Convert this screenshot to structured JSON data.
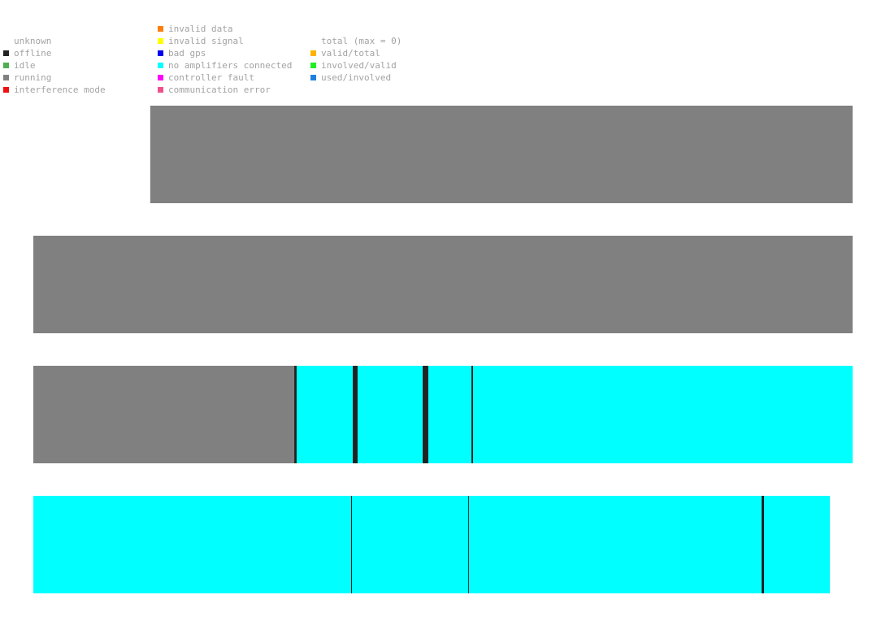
{
  "legend": {
    "status": [
      {
        "label": "unknown",
        "color": ""
      },
      {
        "label": "offline",
        "color": "#222222"
      },
      {
        "label": "idle",
        "color": "#4caf50"
      },
      {
        "label": "running",
        "color": "#808080"
      },
      {
        "label": "interference mode",
        "color": "#ee1111"
      }
    ],
    "errors": [
      {
        "label": "invalid data",
        "color": "#ff7f0e"
      },
      {
        "label": "invalid signal",
        "color": "#ffff00"
      },
      {
        "label": "bad gps",
        "color": "#0000ee"
      },
      {
        "label": "no amplifiers connected",
        "color": "#00ffff"
      },
      {
        "label": "controller fault",
        "color": "#ff00ff"
      },
      {
        "label": "communication error",
        "color": "#f0508c"
      }
    ],
    "ratios": [
      {
        "label": "total (max = 0)",
        "color": ""
      },
      {
        "label": "valid/total",
        "color": "#ffb300"
      },
      {
        "label": "involved/valid",
        "color": "#22ee22"
      },
      {
        "label": "used/involved",
        "color": "#1e7fe0"
      }
    ]
  },
  "chart_data": {
    "type": "timeline",
    "x_range": [
      0,
      1
    ],
    "state_colors": {
      "offline": "#222222",
      "running": "#808080",
      "no amplifiers connected": "#00ffff"
    },
    "rows": [
      {
        "segments": [
          {
            "start": 0.1427,
            "end": 1.0,
            "state": "running"
          }
        ]
      },
      {
        "segments": [
          {
            "start": 0.0,
            "end": 1.0,
            "state": "running"
          }
        ]
      },
      {
        "segments": [
          {
            "start": 0.0,
            "end": 0.3185,
            "state": "running"
          },
          {
            "start": 0.3185,
            "end": 0.3214,
            "state": "offline"
          },
          {
            "start": 0.3214,
            "end": 0.3899,
            "state": "no amplifiers connected"
          },
          {
            "start": 0.3899,
            "end": 0.3958,
            "state": "offline"
          },
          {
            "start": 0.3958,
            "end": 0.4752,
            "state": "no amplifiers connected"
          },
          {
            "start": 0.4752,
            "end": 0.4821,
            "state": "offline"
          },
          {
            "start": 0.4821,
            "end": 0.5347,
            "state": "no amplifiers connected"
          },
          {
            "start": 0.5347,
            "end": 0.5367,
            "state": "offline"
          },
          {
            "start": 0.5367,
            "end": 1.0,
            "state": "no amplifiers connected"
          }
        ]
      },
      {
        "segments": [
          {
            "start": 0.0,
            "end": 0.3879,
            "state": "no amplifiers connected"
          },
          {
            "start": 0.3879,
            "end": 0.3889,
            "state": "offline"
          },
          {
            "start": 0.3889,
            "end": 0.5308,
            "state": "no amplifiers connected"
          },
          {
            "start": 0.5308,
            "end": 0.5317,
            "state": "offline"
          },
          {
            "start": 0.5317,
            "end": 0.8889,
            "state": "no amplifiers connected"
          },
          {
            "start": 0.8889,
            "end": 0.8919,
            "state": "offline"
          },
          {
            "start": 0.8919,
            "end": 0.9722,
            "state": "no amplifiers connected"
          }
        ]
      }
    ]
  }
}
